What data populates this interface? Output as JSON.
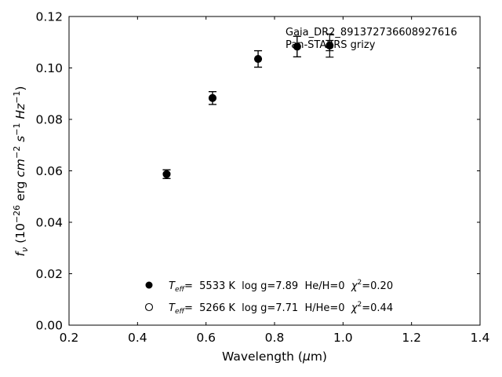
{
  "chart_data": {
    "type": "scatter",
    "xlabel": "Wavelength (μm)",
    "xlabel_parts": [
      "Wavelength (",
      "μ",
      "m)"
    ],
    "ylabel_parts": [
      "f",
      "ν",
      " (10",
      "−26",
      " erg ",
      "cm",
      "−2",
      " s",
      "−1",
      " Hz",
      "−1",
      ")"
    ],
    "xlim": [
      0.2,
      1.4
    ],
    "ylim": [
      0.0,
      0.12
    ],
    "xticks": [
      "0.2",
      "0.4",
      "0.6",
      "0.8",
      "1.0",
      "1.2",
      "1.4"
    ],
    "yticks": [
      "0.00",
      "0.02",
      "0.04",
      "0.06",
      "0.08",
      "0.10",
      "0.12"
    ],
    "grid": false,
    "annotation": [
      "Gaia_DR2_891372736608927616",
      "Pan-STARRS grizy"
    ],
    "legend_position": "bottom-center",
    "series": [
      {
        "marker": "filled-circle",
        "color": "#000000",
        "x": [
          0.485,
          0.619,
          0.752,
          0.866,
          0.961
        ],
        "y": [
          0.0587,
          0.0883,
          0.1035,
          0.1083,
          0.1087
        ],
        "yerr": [
          0.0017,
          0.0025,
          0.0032,
          0.004,
          0.002
        ]
      },
      {
        "marker": "open-circle",
        "color": "#000000",
        "x": [
          0.485,
          0.619,
          0.752,
          0.866,
          0.961
        ],
        "y": [
          0.0587,
          0.0883,
          0.1035,
          0.1083,
          0.1087
        ],
        "yerr": [
          0.0017,
          0.0025,
          0.0032,
          0.004,
          0.0045
        ]
      }
    ],
    "legend": [
      {
        "marker": "filled-circle",
        "sym": "T",
        "sub": "eff",
        "text": "=  5533 K  log g=7.89  He/H=0  ",
        "chi": "χ",
        "sup": "2",
        "val": "=0.20"
      },
      {
        "marker": "open-circle",
        "sym": "T",
        "sub": "eff",
        "text": "=  5266 K  log g=7.71  H/He=0  ",
        "chi": "χ",
        "sup": "2",
        "val": "=0.44"
      }
    ]
  }
}
